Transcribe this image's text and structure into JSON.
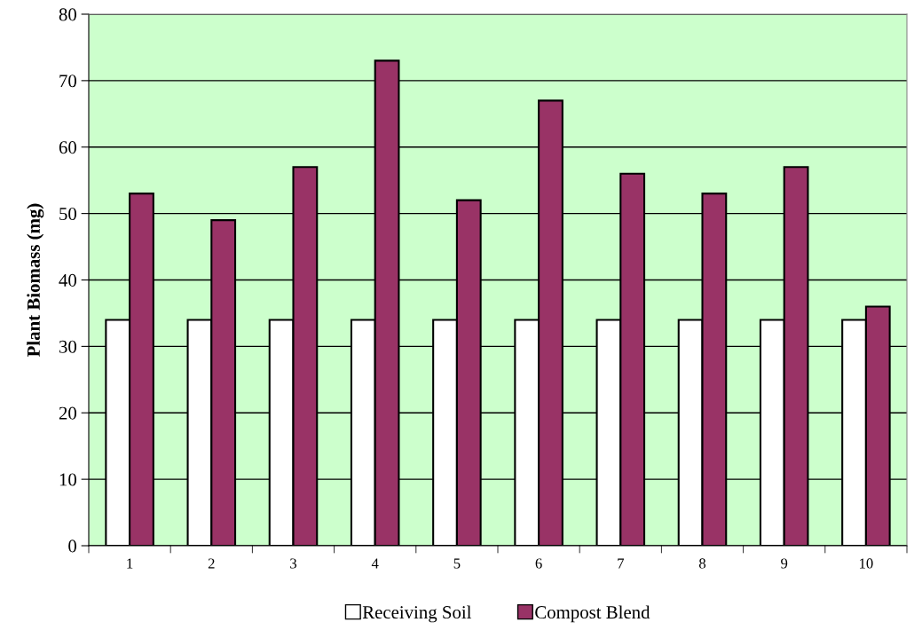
{
  "chart_data": {
    "type": "bar",
    "ylabel": "Plant Biomass (mg)",
    "categories": [
      "1",
      "2",
      "3",
      "4",
      "5",
      "6",
      "7",
      "8",
      "9",
      "10"
    ],
    "series": [
      {
        "name": "Receiving Soil",
        "color": "#ffffff",
        "values": [
          34,
          34,
          34,
          34,
          34,
          34,
          34,
          34,
          34,
          34
        ]
      },
      {
        "name": "Compost Blend",
        "color": "#993366",
        "values": [
          53,
          49,
          57,
          73,
          52,
          67,
          56,
          53,
          57,
          36
        ]
      }
    ],
    "ylim": [
      0,
      80
    ],
    "yticks": [
      0,
      10,
      20,
      30,
      40,
      50,
      60,
      70,
      80
    ],
    "grid": "y",
    "legend": "bottom"
  }
}
